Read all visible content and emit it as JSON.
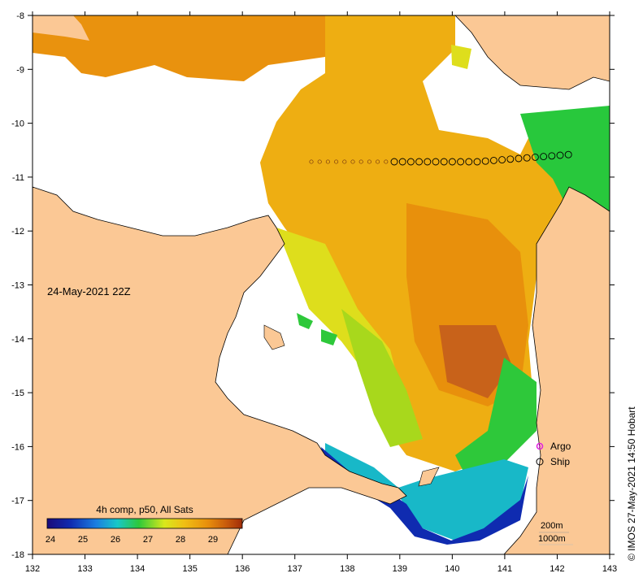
{
  "map": {
    "date_label": "24-May-2021 22Z",
    "credit": "© IMOS 27-May-2021 14:50 Hobart",
    "x_ticks": [
      "132",
      "133",
      "134",
      "135",
      "136",
      "137",
      "138",
      "139",
      "140",
      "141",
      "142",
      "143"
    ],
    "y_ticks": [
      "-8",
      "-9",
      "-10",
      "-11",
      "-12",
      "-13",
      "-14",
      "-15",
      "-16",
      "-17",
      "-18"
    ],
    "legend": {
      "argo_label": "Argo",
      "ship_label": "Ship",
      "argo_color": "#e020e0"
    },
    "isobaths": {
      "label_200": "200m",
      "label_1000": "1000m"
    },
    "colorbar": {
      "title": "4h comp, p50, All Sats",
      "ticks": [
        "24",
        "25",
        "26",
        "27",
        "28",
        "29"
      ],
      "range": [
        23.9,
        29.9
      ]
    },
    "colors": {
      "land": "#fbc895",
      "no_data": "#ffffff",
      "coast": "#000000"
    }
  }
}
